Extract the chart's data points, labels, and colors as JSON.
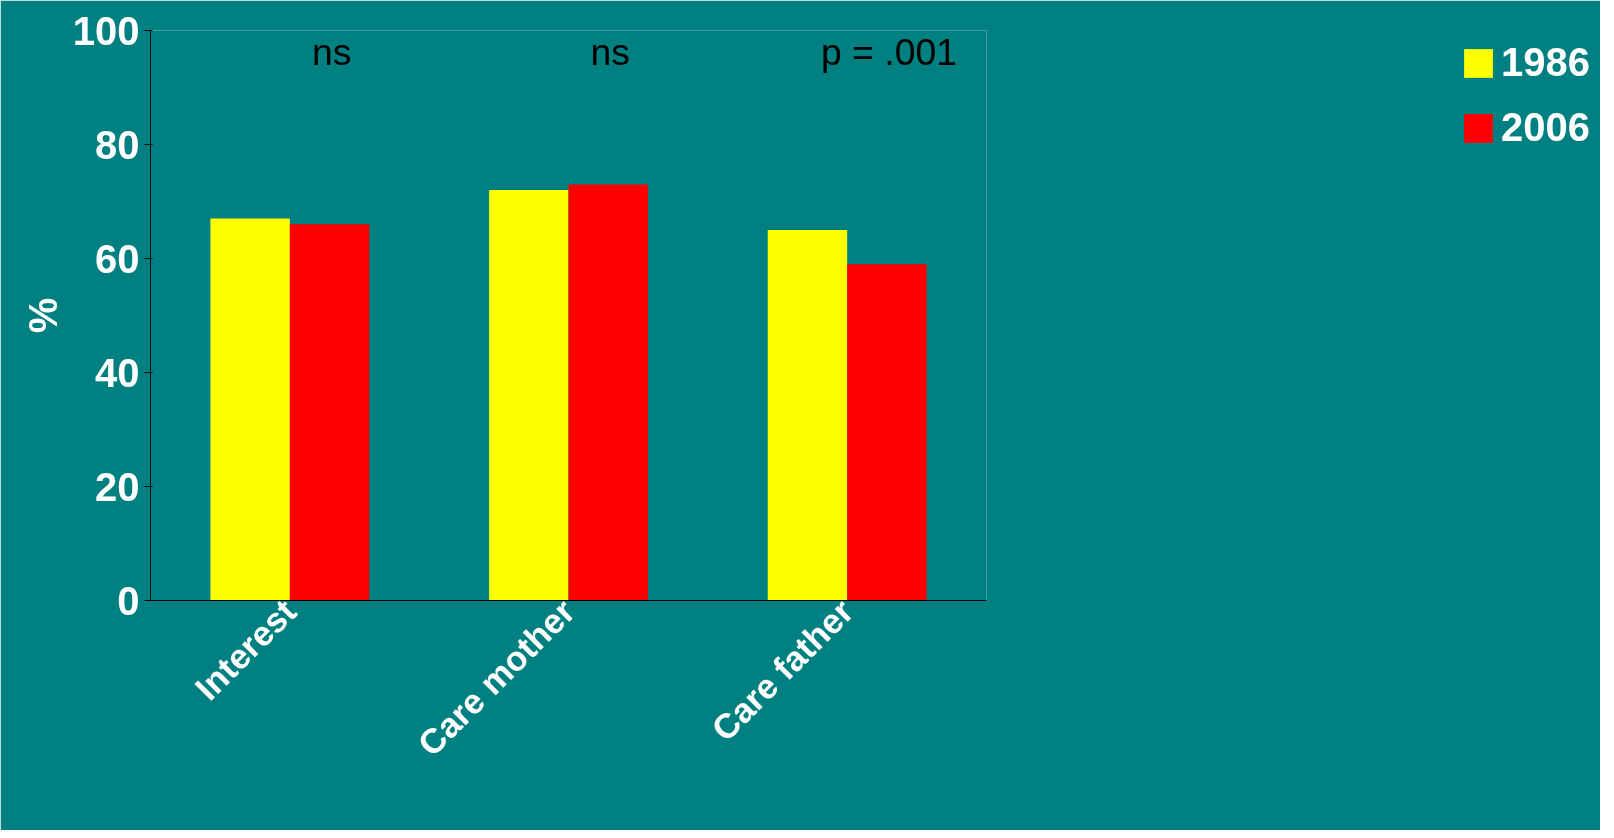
{
  "chart_data": {
    "type": "bar",
    "ylabel": "%",
    "categories": [
      "Interest",
      "Care mother",
      "Care father"
    ],
    "series": [
      {
        "name": "1986",
        "color": "#ffff00",
        "values": [
          67,
          72,
          65
        ]
      },
      {
        "name": "2006",
        "color": "#ff0000",
        "values": [
          66,
          73,
          59
        ]
      }
    ],
    "ylim": [
      0,
      100
    ],
    "yticks": [
      0,
      20,
      40,
      60,
      80,
      100
    ],
    "grid": false,
    "legend": "right",
    "annotations": [
      "ns",
      "ns",
      "p = .001"
    ]
  }
}
